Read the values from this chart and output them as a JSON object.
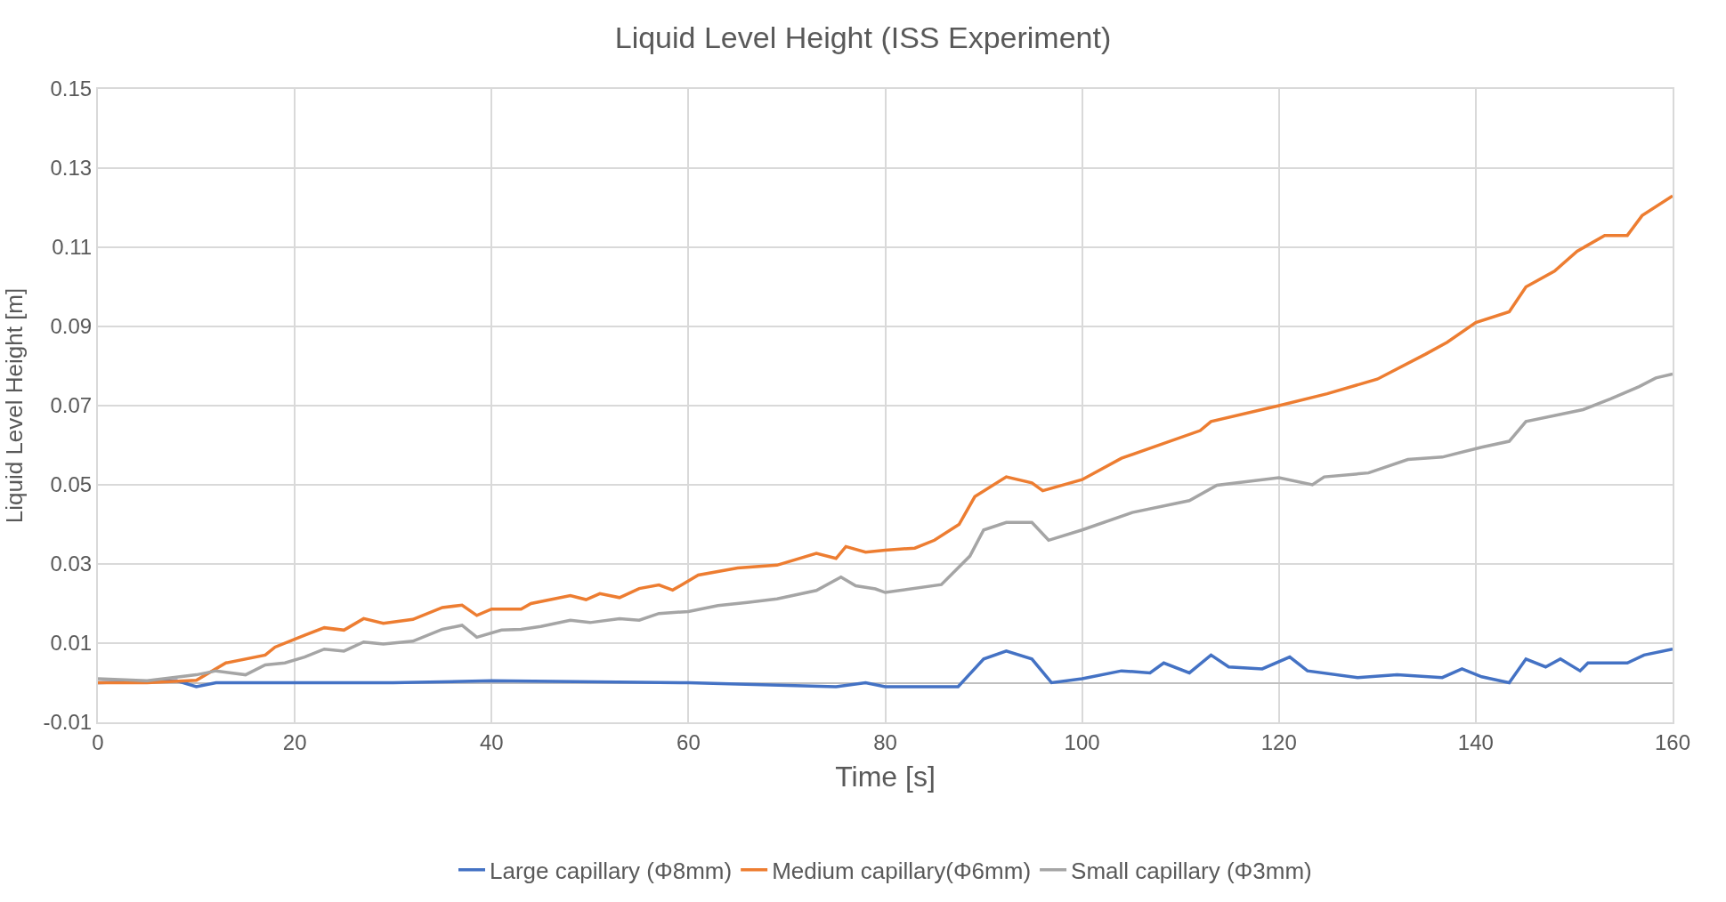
{
  "chart_data": {
    "type": "line",
    "title": "Liquid Level Height (ISS Experiment)",
    "xlabel": "Time [s]",
    "ylabel": "Liquid Level Height [m]",
    "xlim": [
      0,
      160
    ],
    "xticks": [
      0,
      20,
      40,
      60,
      80,
      100,
      120,
      140,
      160
    ],
    "ylim": [
      -0.01,
      0.15
    ],
    "yticks": [
      {
        "value": -0.01,
        "label": "-0.01"
      },
      {
        "value": 0.01,
        "label": "0.01"
      },
      {
        "value": 0.03,
        "label": "0.03"
      },
      {
        "value": 0.05,
        "label": "0.05"
      },
      {
        "value": 0.07,
        "label": "0.07"
      },
      {
        "value": 0.09,
        "label": "0.09"
      },
      {
        "value": 0.11,
        "label": "0.11"
      },
      {
        "value": 0.13,
        "label": "0.13"
      },
      {
        "value": 0.15,
        "label": "0.15"
      }
    ],
    "grid": true,
    "legend": "bottom",
    "marker": "none",
    "line_style": "solid",
    "series": [
      {
        "name": "Large capillary (Φ8mm)",
        "color": "#4472c4",
        "x": [
          0,
          8,
          10,
          12,
          20,
          30,
          40,
          60,
          75,
          78,
          80,
          87.4,
          90,
          92.3,
          94.9,
          96.9,
          100,
          104,
          106.9,
          108.3,
          110.9,
          113.1,
          114.9,
          118.3,
          121.1,
          122.9,
          128,
          132,
          136.6,
          138.6,
          140.6,
          143.4,
          145.1,
          147.1,
          148.6,
          150.6,
          151.4,
          155.4,
          157.1,
          160
        ],
        "values": [
          0,
          0.0005,
          -0.001,
          0,
          0,
          0,
          0.0005,
          0,
          -0.001,
          0,
          -0.001,
          -0.001,
          0.006,
          0.008,
          0.006,
          0,
          0.001,
          0.003,
          0.0025,
          0.005,
          0.0025,
          0.007,
          0.004,
          0.0035,
          0.0065,
          0.003,
          0.0013,
          0.002,
          0.0013,
          0.0035,
          0.0015,
          0,
          0.006,
          0.004,
          0.006,
          0.003,
          0.005,
          0.005,
          0.007,
          0.0085
        ]
      },
      {
        "name": "Medium capillary(Φ6mm)",
        "color": "#ed7d31",
        "x": [
          0,
          5,
          10,
          13,
          17,
          18,
          21,
          23,
          25,
          27,
          29,
          32,
          35,
          37,
          38.5,
          40,
          43,
          44,
          48,
          49.6,
          51,
          53,
          55,
          57,
          58.4,
          61,
          65,
          69,
          73,
          75,
          76,
          78,
          80,
          83,
          85,
          87.5,
          89.1,
          92.3,
          94.9,
          96,
          100,
          104,
          112,
          113.1,
          120,
          124.9,
          130,
          134.9,
          137.1,
          140,
          143.4,
          145.1,
          148,
          150.3,
          153.1,
          155.4,
          156.9,
          160
        ],
        "values": [
          0,
          0,
          0.0006,
          0.005,
          0.007,
          0.009,
          0.012,
          0.0139,
          0.0133,
          0.0162,
          0.015,
          0.016,
          0.019,
          0.0196,
          0.017,
          0.0186,
          0.0186,
          0.02,
          0.022,
          0.021,
          0.0225,
          0.0215,
          0.0238,
          0.0247,
          0.0234,
          0.0272,
          0.029,
          0.0297,
          0.0327,
          0.0314,
          0.0344,
          0.033,
          0.0335,
          0.034,
          0.036,
          0.04,
          0.047,
          0.052,
          0.0505,
          0.0485,
          0.0513,
          0.0567,
          0.0637,
          0.066,
          0.07,
          0.073,
          0.0767,
          0.083,
          0.086,
          0.091,
          0.0937,
          0.1,
          0.104,
          0.109,
          0.113,
          0.113,
          0.118,
          0.123
        ]
      },
      {
        "name": "Small capillary (Φ3mm)",
        "color": "#a5a5a5",
        "x": [
          0,
          5,
          10,
          12,
          15,
          17,
          19,
          21,
          23,
          25,
          27,
          29,
          32,
          35,
          37,
          38.5,
          41,
          43,
          45,
          48,
          50,
          53,
          55,
          57,
          60,
          63,
          66,
          69,
          73,
          75.5,
          77,
          79,
          80,
          85.7,
          88.6,
          90,
          92.3,
          94.9,
          96.6,
          100,
          105.1,
          110.9,
          113.7,
          120,
          123.4,
          124.6,
          129.1,
          133.1,
          136.6,
          140.6,
          143.4,
          145.1,
          150.9,
          153.7,
          156.6,
          158.3,
          160
        ],
        "values": [
          0.001,
          0.0005,
          0.002,
          0.003,
          0.002,
          0.0045,
          0.005,
          0.0065,
          0.0085,
          0.008,
          0.0103,
          0.0098,
          0.0105,
          0.0135,
          0.0145,
          0.0115,
          0.0133,
          0.0135,
          0.0142,
          0.0158,
          0.0152,
          0.0162,
          0.0158,
          0.0175,
          0.018,
          0.0195,
          0.0203,
          0.0212,
          0.0233,
          0.0267,
          0.0245,
          0.0237,
          0.0228,
          0.0248,
          0.032,
          0.0386,
          0.0405,
          0.0405,
          0.036,
          0.0386,
          0.043,
          0.046,
          0.0499,
          0.0518,
          0.05,
          0.052,
          0.053,
          0.0564,
          0.057,
          0.0595,
          0.061,
          0.066,
          0.069,
          0.0717,
          0.0748,
          0.077,
          0.078
        ]
      }
    ]
  }
}
